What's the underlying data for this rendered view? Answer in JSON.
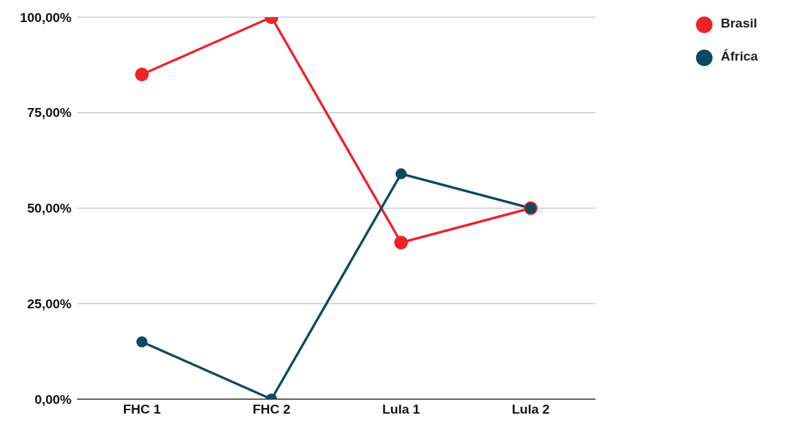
{
  "chart_data": {
    "type": "line",
    "categories": [
      "FHC 1",
      "FHC 2",
      "Lula 1",
      "Lula 2"
    ],
    "series": [
      {
        "name": "Brasil",
        "color": "#ee2229",
        "values": [
          85,
          100,
          41,
          50
        ]
      },
      {
        "name": "África",
        "color": "#0b4a5f",
        "values": [
          15,
          0,
          59,
          50
        ]
      }
    ],
    "ylim": [
      0,
      100
    ],
    "yticks": [
      {
        "value": 0,
        "label": "0,00%"
      },
      {
        "value": 25,
        "label": "25,00%"
      },
      {
        "value": 50,
        "label": "50,00%"
      },
      {
        "value": 75,
        "label": "75,00%"
      },
      {
        "value": 100,
        "label": "100,00%"
      }
    ],
    "grid": "y",
    "legend": "top right",
    "marker": "circle",
    "line_style": "solid"
  }
}
